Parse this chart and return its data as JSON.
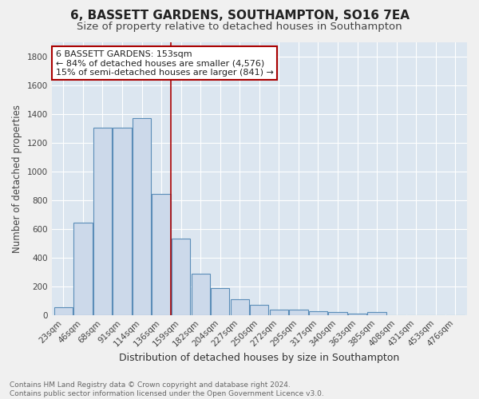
{
  "title": "6, BASSETT GARDENS, SOUTHAMPTON, SO16 7EA",
  "subtitle": "Size of property relative to detached houses in Southampton",
  "xlabel": "Distribution of detached houses by size in Southampton",
  "ylabel": "Number of detached properties",
  "bar_color": "#ccd9ea",
  "bar_edge_color": "#5b8db8",
  "background_color": "#dce6f0",
  "grid_color": "#ffffff",
  "fig_bg_color": "#f0f0f0",
  "categories": [
    "23sqm",
    "46sqm",
    "68sqm",
    "91sqm",
    "114sqm",
    "136sqm",
    "159sqm",
    "182sqm",
    "204sqm",
    "227sqm",
    "250sqm",
    "272sqm",
    "295sqm",
    "317sqm",
    "340sqm",
    "363sqm",
    "385sqm",
    "408sqm",
    "431sqm",
    "453sqm",
    "476sqm"
  ],
  "values": [
    55,
    640,
    1305,
    1305,
    1370,
    845,
    530,
    285,
    185,
    110,
    70,
    40,
    38,
    25,
    18,
    10,
    18,
    0,
    0,
    0,
    0
  ],
  "ylim": [
    0,
    1900
  ],
  "yticks": [
    0,
    200,
    400,
    600,
    800,
    1000,
    1200,
    1400,
    1600,
    1800
  ],
  "vline_x": 5.5,
  "vline_color": "#aa0000",
  "annotation_line1": "6 BASSETT GARDENS: 153sqm",
  "annotation_line2": "← 84% of detached houses are smaller (4,576)",
  "annotation_line3": "15% of semi-detached houses are larger (841) →",
  "annotation_box_color": "#ffffff",
  "annotation_box_edge": "#aa0000",
  "footer_text": "Contains HM Land Registry data © Crown copyright and database right 2024.\nContains public sector information licensed under the Open Government Licence v3.0.",
  "title_fontsize": 11,
  "subtitle_fontsize": 9.5,
  "xlabel_fontsize": 9,
  "ylabel_fontsize": 8.5,
  "tick_fontsize": 7.5,
  "annotation_fontsize": 8,
  "footer_fontsize": 6.5
}
